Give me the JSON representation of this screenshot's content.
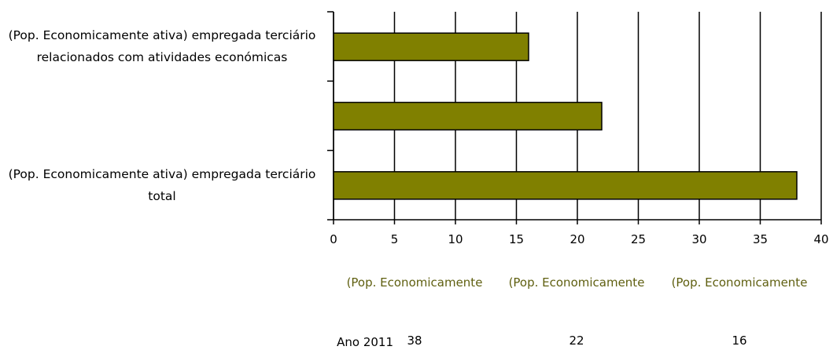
{
  "chart_data": {
    "type": "bar",
    "orientation": "horizontal",
    "categories": [
      "(Pop. Economicamente ativa) empregada terciário total",
      null,
      "(Pop. Economicamente ativa) empregada terciário relacionados com atividades económicas"
    ],
    "series": [
      {
        "name": "Ano 2011",
        "color": "#808000",
        "values": [
          38,
          22,
          16
        ]
      }
    ],
    "xlim": [
      0,
      40
    ],
    "xticks": [
      0,
      5,
      10,
      15,
      20,
      25,
      30,
      35,
      40
    ],
    "grid": true,
    "data_table": {
      "headers": [
        "(Pop. Economicamente",
        "(Pop. Economicamente",
        "(Pop. Economicamente"
      ]
    }
  }
}
